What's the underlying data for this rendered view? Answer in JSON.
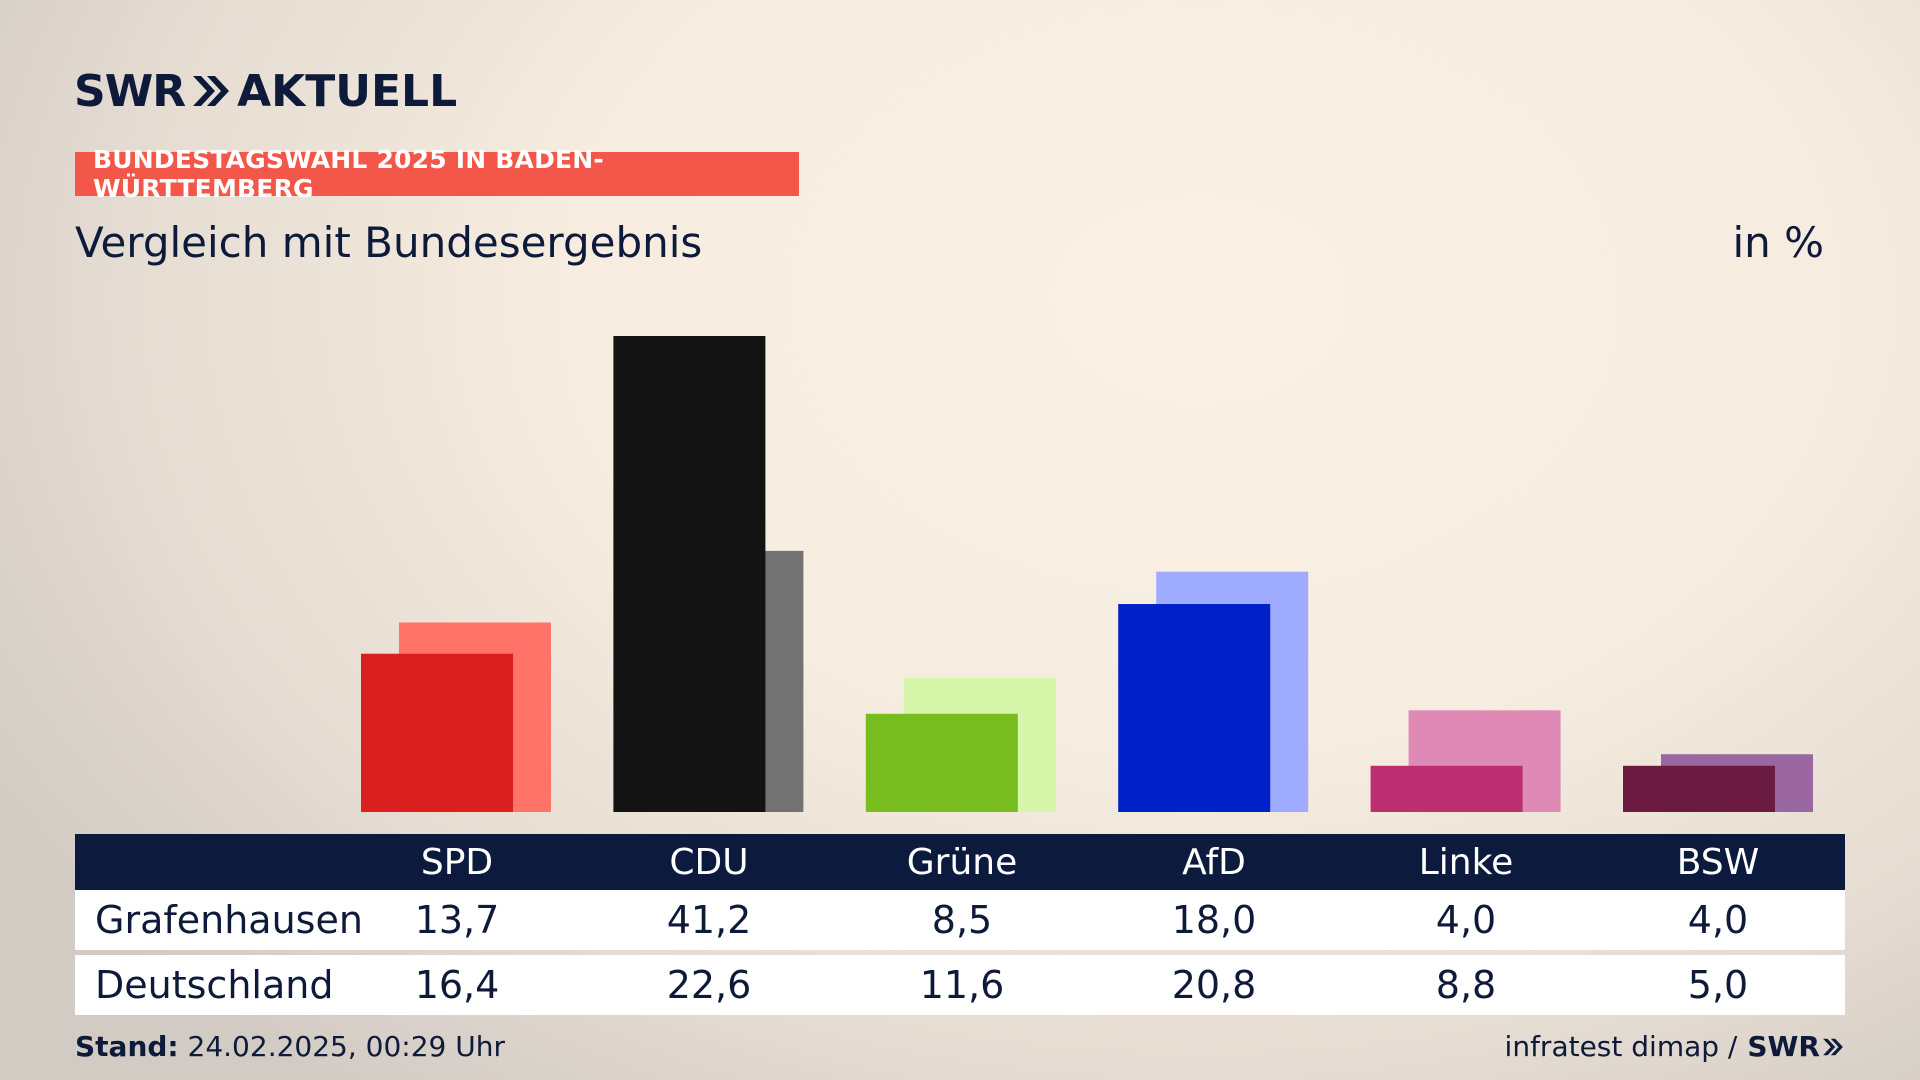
{
  "header": {
    "logo_left": "SWR",
    "logo_right": "AKTUELL",
    "badge": "BUNDESTAGSWAHL 2025 IN BADEN-WÜRTTEMBERG",
    "subtitle": "Vergleich mit Bundesergebnis",
    "unit": "in %"
  },
  "colors": {
    "navy": "#0c1b3d",
    "badge": "#f2574a"
  },
  "chart_data": {
    "type": "bar",
    "categories": [
      "SPD",
      "CDU",
      "Grüne",
      "AfD",
      "Linke",
      "BSW"
    ],
    "series": [
      {
        "name": "Grafenhausen",
        "values": [
          13.7,
          41.2,
          8.5,
          18.0,
          4.0,
          4.0
        ],
        "colors": [
          "#d91f1f",
          "#131313",
          "#78bd1e",
          "#0020c8",
          "#bb2f70",
          "#6b1a40"
        ]
      },
      {
        "name": "Deutschland",
        "values": [
          16.4,
          22.6,
          11.6,
          20.8,
          8.8,
          5.0
        ],
        "colors": [
          "#ff7369",
          "#727272",
          "#d6f6a9",
          "#9fabff",
          "#df89b6",
          "#9b67a0"
        ]
      }
    ],
    "ylim": [
      0,
      41.2
    ]
  },
  "table": {
    "headers": [
      "SPD",
      "CDU",
      "Grüne",
      "AfD",
      "Linke",
      "BSW"
    ],
    "rows": [
      {
        "label": "Grafenhausen",
        "values": [
          "13,7",
          "41,2",
          "8,5",
          "18,0",
          "4,0",
          "4,0"
        ]
      },
      {
        "label": "Deutschland",
        "values": [
          "16,4",
          "22,6",
          "11,6",
          "20,8",
          "8,8",
          "5,0"
        ]
      }
    ]
  },
  "footer": {
    "stand_label": "Stand:",
    "stand_value": "24.02.2025, 00:29 Uhr",
    "source": "infratest dimap /",
    "source_logo": "SWR"
  }
}
